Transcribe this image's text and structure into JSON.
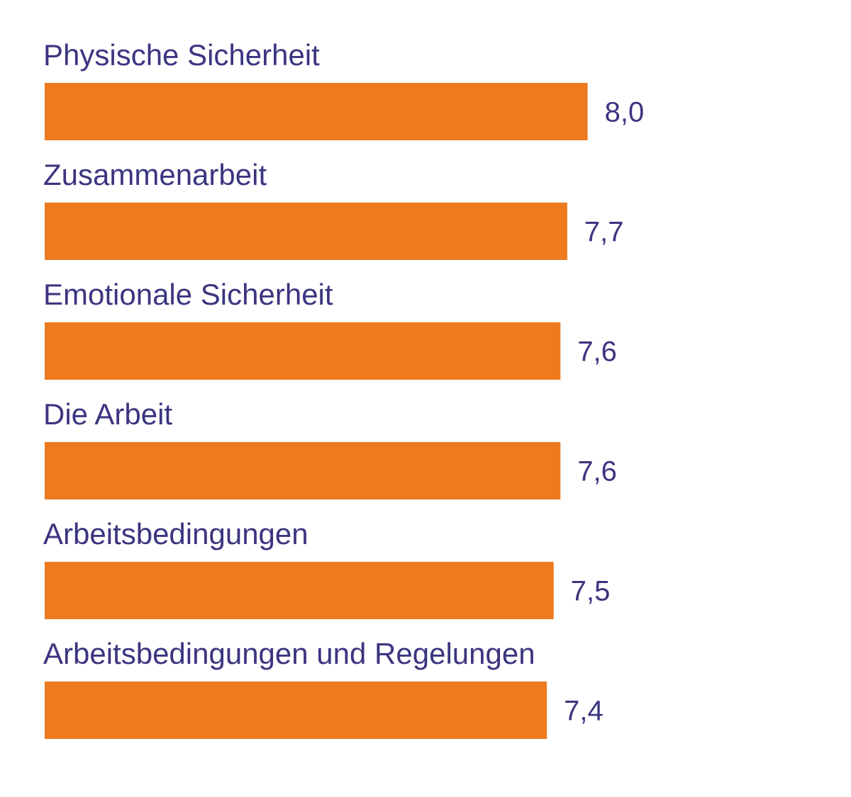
{
  "chart_data": {
    "type": "bar",
    "orientation": "horizontal",
    "categories": [
      "Physische Sicherheit",
      "Zusammenarbeit",
      "Emotionale Sicherheit",
      "Die Arbeit",
      "Arbeitsbedingungen",
      "Arbeitsbedingungen und Regelungen"
    ],
    "values": [
      8.0,
      7.7,
      7.6,
      7.6,
      7.5,
      7.4
    ],
    "value_labels": [
      "8,0",
      "7,7",
      "7,6",
      "7,6",
      "7,5",
      "7,4"
    ],
    "title": "",
    "xlabel": "",
    "ylabel": "",
    "grid": false,
    "legend": "none"
  },
  "colors": {
    "bar": "#ED7A1F",
    "text": "#3B3580",
    "background": "#FFFFFF"
  }
}
